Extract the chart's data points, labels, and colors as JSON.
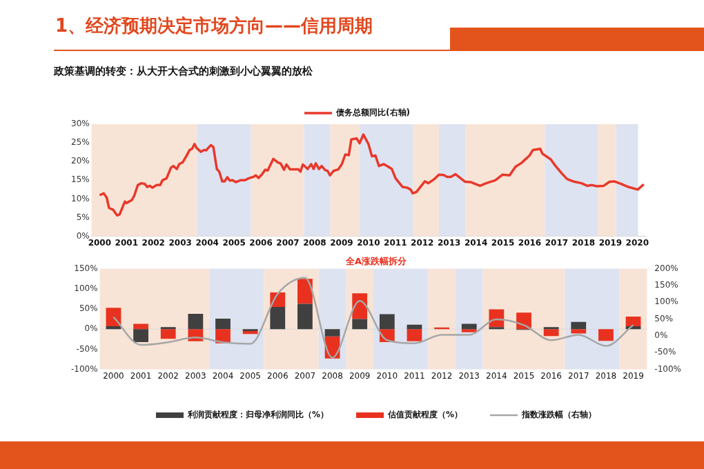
{
  "chart_data": [
    {
      "type": "line",
      "title": "1、经济预期决定市场方向——信用周期",
      "subtitle": "政策基调的转变：从大开大合式的刺激到小心翼翼的放松",
      "x": [
        2000.0,
        2000.15,
        2000.26,
        2000.35,
        2000.5,
        2000.65,
        2000.74,
        2000.94,
        2001.0,
        2001.2,
        2001.29,
        2001.42,
        2001.55,
        2001.68,
        2001.77,
        2001.87,
        2001.96,
        2002.12,
        2002.25,
        2002.34,
        2002.49,
        2002.65,
        2002.74,
        2002.87,
        2002.96,
        2003.09,
        2003.22,
        2003.35,
        2003.44,
        2003.53,
        2003.61,
        2003.77,
        2003.88,
        2003.96,
        2004.14,
        2004.23,
        2004.36,
        2004.45,
        2004.56,
        2004.65,
        2004.75,
        2004.84,
        2004.95,
        2005.06,
        2005.24,
        2005.41,
        2005.54,
        2005.72,
        2005.81,
        2005.91,
        2006.03,
        2006.16,
        2006.25,
        2006.46,
        2006.64,
        2006.73,
        2006.86,
        2006.95,
        2007.08,
        2007.25,
        2007.39,
        2007.47,
        2007.56,
        2007.74,
        2007.87,
        2007.96,
        2008.04,
        2008.16,
        2008.26,
        2008.39,
        2008.48,
        2008.57,
        2008.7,
        2008.88,
        2009.01,
        2009.14,
        2009.27,
        2009.36,
        2009.56,
        2009.67,
        2009.81,
        2010.0,
        2010.13,
        2010.26,
        2010.39,
        2010.57,
        2010.74,
        2010.87,
        2011.01,
        2011.27,
        2011.44,
        2011.57,
        2011.65,
        2011.79,
        2012.1,
        2012.23,
        2012.45,
        2012.62,
        2012.8,
        2012.93,
        2013.06,
        2013.24,
        2013.59,
        2013.81,
        2014.15,
        2014.38,
        2014.72,
        2014.99,
        2015.25,
        2015.47,
        2015.69,
        2015.99,
        2016.12,
        2016.39,
        2016.47,
        2016.78,
        2016.96,
        2017.17,
        2017.39,
        2017.61,
        2017.92,
        2018.14,
        2018.31,
        2018.49,
        2018.75,
        2018.97,
        2019.14,
        2019.4,
        2019.67,
        2020.02,
        2020.24
      ],
      "series": [
        {
          "name": "债务总额同比(右轴)",
          "color": "#e8382b",
          "values": [
            11.0,
            11.5,
            10.4,
            7.6,
            7.1,
            5.6,
            5.8,
            9.3,
            8.9,
            9.7,
            10.9,
            13.7,
            14.2,
            14.0,
            13.2,
            13.5,
            13.0,
            13.7,
            13.7,
            15.0,
            15.5,
            18.3,
            18.8,
            18.0,
            19.3,
            19.8,
            21.4,
            23.1,
            23.4,
            24.7,
            23.6,
            22.6,
            23.1,
            23.0,
            24.4,
            23.9,
            18.0,
            17.3,
            14.7,
            14.7,
            15.8,
            14.9,
            15.0,
            14.5,
            15.0,
            15.0,
            15.5,
            15.9,
            16.3,
            15.6,
            16.5,
            17.8,
            17.6,
            20.7,
            19.7,
            19.5,
            17.8,
            19.2,
            17.9,
            17.9,
            17.9,
            17.3,
            19.2,
            18.0,
            19.3,
            18.0,
            19.5,
            18.0,
            18.8,
            17.7,
            17.5,
            16.3,
            17.5,
            17.9,
            19.3,
            21.9,
            21.7,
            25.9,
            26.2,
            24.9,
            27.2,
            24.7,
            21.4,
            21.6,
            18.8,
            19.3,
            18.6,
            18.0,
            15.5,
            13.2,
            13.0,
            12.5,
            11.5,
            11.9,
            14.7,
            14.2,
            15.3,
            16.5,
            16.4,
            15.9,
            15.9,
            16.6,
            14.6,
            14.5,
            13.5,
            14.2,
            15.0,
            16.5,
            16.3,
            18.6,
            19.6,
            21.6,
            23.1,
            23.4,
            22.1,
            20.6,
            18.8,
            17.0,
            15.3,
            14.7,
            14.2,
            13.5,
            13.7,
            13.4,
            13.5,
            14.6,
            14.7,
            14.0,
            13.2,
            12.5,
            13.9
          ]
        }
      ],
      "xlim": [
        1999.7,
        2020.3
      ],
      "xticks": [
        2000,
        2001,
        2002,
        2003,
        2004,
        2005,
        2006,
        2007,
        2008,
        2009,
        2010,
        2011,
        2012,
        2013,
        2014,
        2015,
        2016,
        2017,
        2018,
        2019,
        2020
      ],
      "ylim": [
        0,
        30
      ],
      "yticks": [
        {
          "value": 0,
          "label": "0%"
        },
        {
          "value": 5,
          "label": "5%"
        },
        {
          "value": 10,
          "label": "10%"
        },
        {
          "value": 15,
          "label": "15%"
        },
        {
          "value": 20,
          "label": "20%"
        },
        {
          "value": 25,
          "label": "25%"
        },
        {
          "value": 30,
          "label": "30%"
        }
      ],
      "bands": [
        {
          "axis": "x",
          "from": 1999.7,
          "to": 2003.62,
          "color": "#f8e4d6"
        },
        {
          "axis": "x",
          "from": 2003.62,
          "to": 2005.62,
          "color": "#dde3f1"
        },
        {
          "axis": "x",
          "from": 2005.62,
          "to": 2007.61,
          "color": "#f8e4d6"
        },
        {
          "axis": "x",
          "from": 2007.61,
          "to": 2008.58,
          "color": "#dde3f1"
        },
        {
          "axis": "x",
          "from": 2008.58,
          "to": 2009.66,
          "color": "#f8e4d6"
        },
        {
          "axis": "x",
          "from": 2009.66,
          "to": 2011.65,
          "color": "#dde3f1"
        },
        {
          "axis": "x",
          "from": 2011.65,
          "to": 2012.62,
          "color": "#f8e4d6"
        },
        {
          "axis": "x",
          "from": 2012.62,
          "to": 2013.6,
          "color": "#dde3f1"
        },
        {
          "axis": "x",
          "from": 2013.6,
          "to": 2016.56,
          "color": "#f8e4d6"
        },
        {
          "axis": "x",
          "from": 2016.56,
          "to": 2018.53,
          "color": "#dde3f1"
        },
        {
          "axis": "x",
          "from": 2018.53,
          "to": 2019.21,
          "color": "#f8e4d6"
        },
        {
          "axis": "x",
          "from": 2019.21,
          "to": 2020.03,
          "color": "#dde3f1"
        }
      ],
      "grid": false,
      "legend": "top",
      "marker": "none",
      "line_style": "solid"
    },
    {
      "type": "bar",
      "title": "全A涨跌幅拆分",
      "stacked": true,
      "categories": [
        "2000",
        "2001",
        "2002",
        "2003",
        "2004",
        "2005",
        "2006",
        "2007",
        "2008",
        "2009",
        "2010",
        "2011",
        "2012",
        "2013",
        "2014",
        "2015",
        "2016",
        "2017",
        "2018",
        "2019"
      ],
      "series": [
        {
          "name": "利润贡献程度：归母净利润同比（%）",
          "color": "#404040",
          "values": [
            7,
            -32,
            5,
            38,
            26,
            -5,
            55,
            63,
            -18,
            25,
            37,
            11,
            0,
            13,
            5,
            -2,
            5,
            18,
            0,
            7
          ]
        },
        {
          "name": "估值贡献程度（%）",
          "color": "#e8321f",
          "values": [
            46,
            13,
            -24,
            -30,
            -35,
            -7,
            36,
            62,
            -55,
            64,
            -32,
            -30,
            4,
            -8,
            44,
            41,
            -17,
            -11,
            -29,
            24
          ]
        },
        {
          "name": "指数涨跌幅（右轴）",
          "type": "line",
          "axis": "y2",
          "color": "#a6a6a6",
          "values": [
            56,
            -27,
            -19,
            -5,
            -19,
            -24,
            125,
            173,
            -65,
            104,
            -13,
            -22,
            3,
            3,
            49,
            32,
            -13,
            3,
            -30,
            32
          ]
        }
      ],
      "ylim": [
        -100,
        150
      ],
      "yticks": [
        {
          "value": -100,
          "label": "-100%"
        },
        {
          "value": -50,
          "label": "-50%"
        },
        {
          "value": 0,
          "label": "0%"
        },
        {
          "value": 50,
          "label": "50%"
        },
        {
          "value": 100,
          "label": "100%"
        },
        {
          "value": 150,
          "label": "150%"
        }
      ],
      "y2lim": [
        -100,
        200
      ],
      "y2ticks": [
        {
          "value": -100,
          "label": "-100%"
        },
        {
          "value": -50,
          "label": "-50%"
        },
        {
          "value": 0,
          "label": "0%"
        },
        {
          "value": 50,
          "label": "50%"
        },
        {
          "value": 100,
          "label": "100%"
        },
        {
          "value": 150,
          "label": "150%"
        },
        {
          "value": 200,
          "label": "200%"
        }
      ],
      "bands": [
        {
          "axis": "x",
          "from": "2000",
          "to": "2003",
          "color": "#f8e4d6"
        },
        {
          "axis": "x",
          "from": "2004",
          "to": "2005",
          "color": "#dde3f1"
        },
        {
          "axis": "x",
          "from": "2006",
          "to": "2007",
          "color": "#f8e4d6"
        },
        {
          "axis": "x",
          "from": "2008",
          "to": "2008",
          "color": "#dde3f1"
        },
        {
          "axis": "x",
          "from": "2009",
          "to": "2009",
          "color": "#f8e4d6"
        },
        {
          "axis": "x",
          "from": "2010",
          "to": "2011",
          "color": "#dde3f1"
        },
        {
          "axis": "x",
          "from": "2012",
          "to": "2012",
          "color": "#f8e4d6"
        },
        {
          "axis": "x",
          "from": "2013",
          "to": "2013",
          "color": "#dde3f1"
        },
        {
          "axis": "x",
          "from": "2014",
          "to": "2016",
          "color": "#f8e4d6"
        },
        {
          "axis": "x",
          "from": "2017",
          "to": "2018",
          "color": "#dde3f1"
        },
        {
          "axis": "x",
          "from": "2019",
          "to": "2019",
          "color": "#f8e4d6"
        }
      ],
      "ref_lines": [
        {
          "axis": "y",
          "value": 0,
          "color": "#d9d9d9"
        }
      ],
      "grid": false,
      "legend": "bottom",
      "marker": "none",
      "line_style": "solid"
    }
  ]
}
